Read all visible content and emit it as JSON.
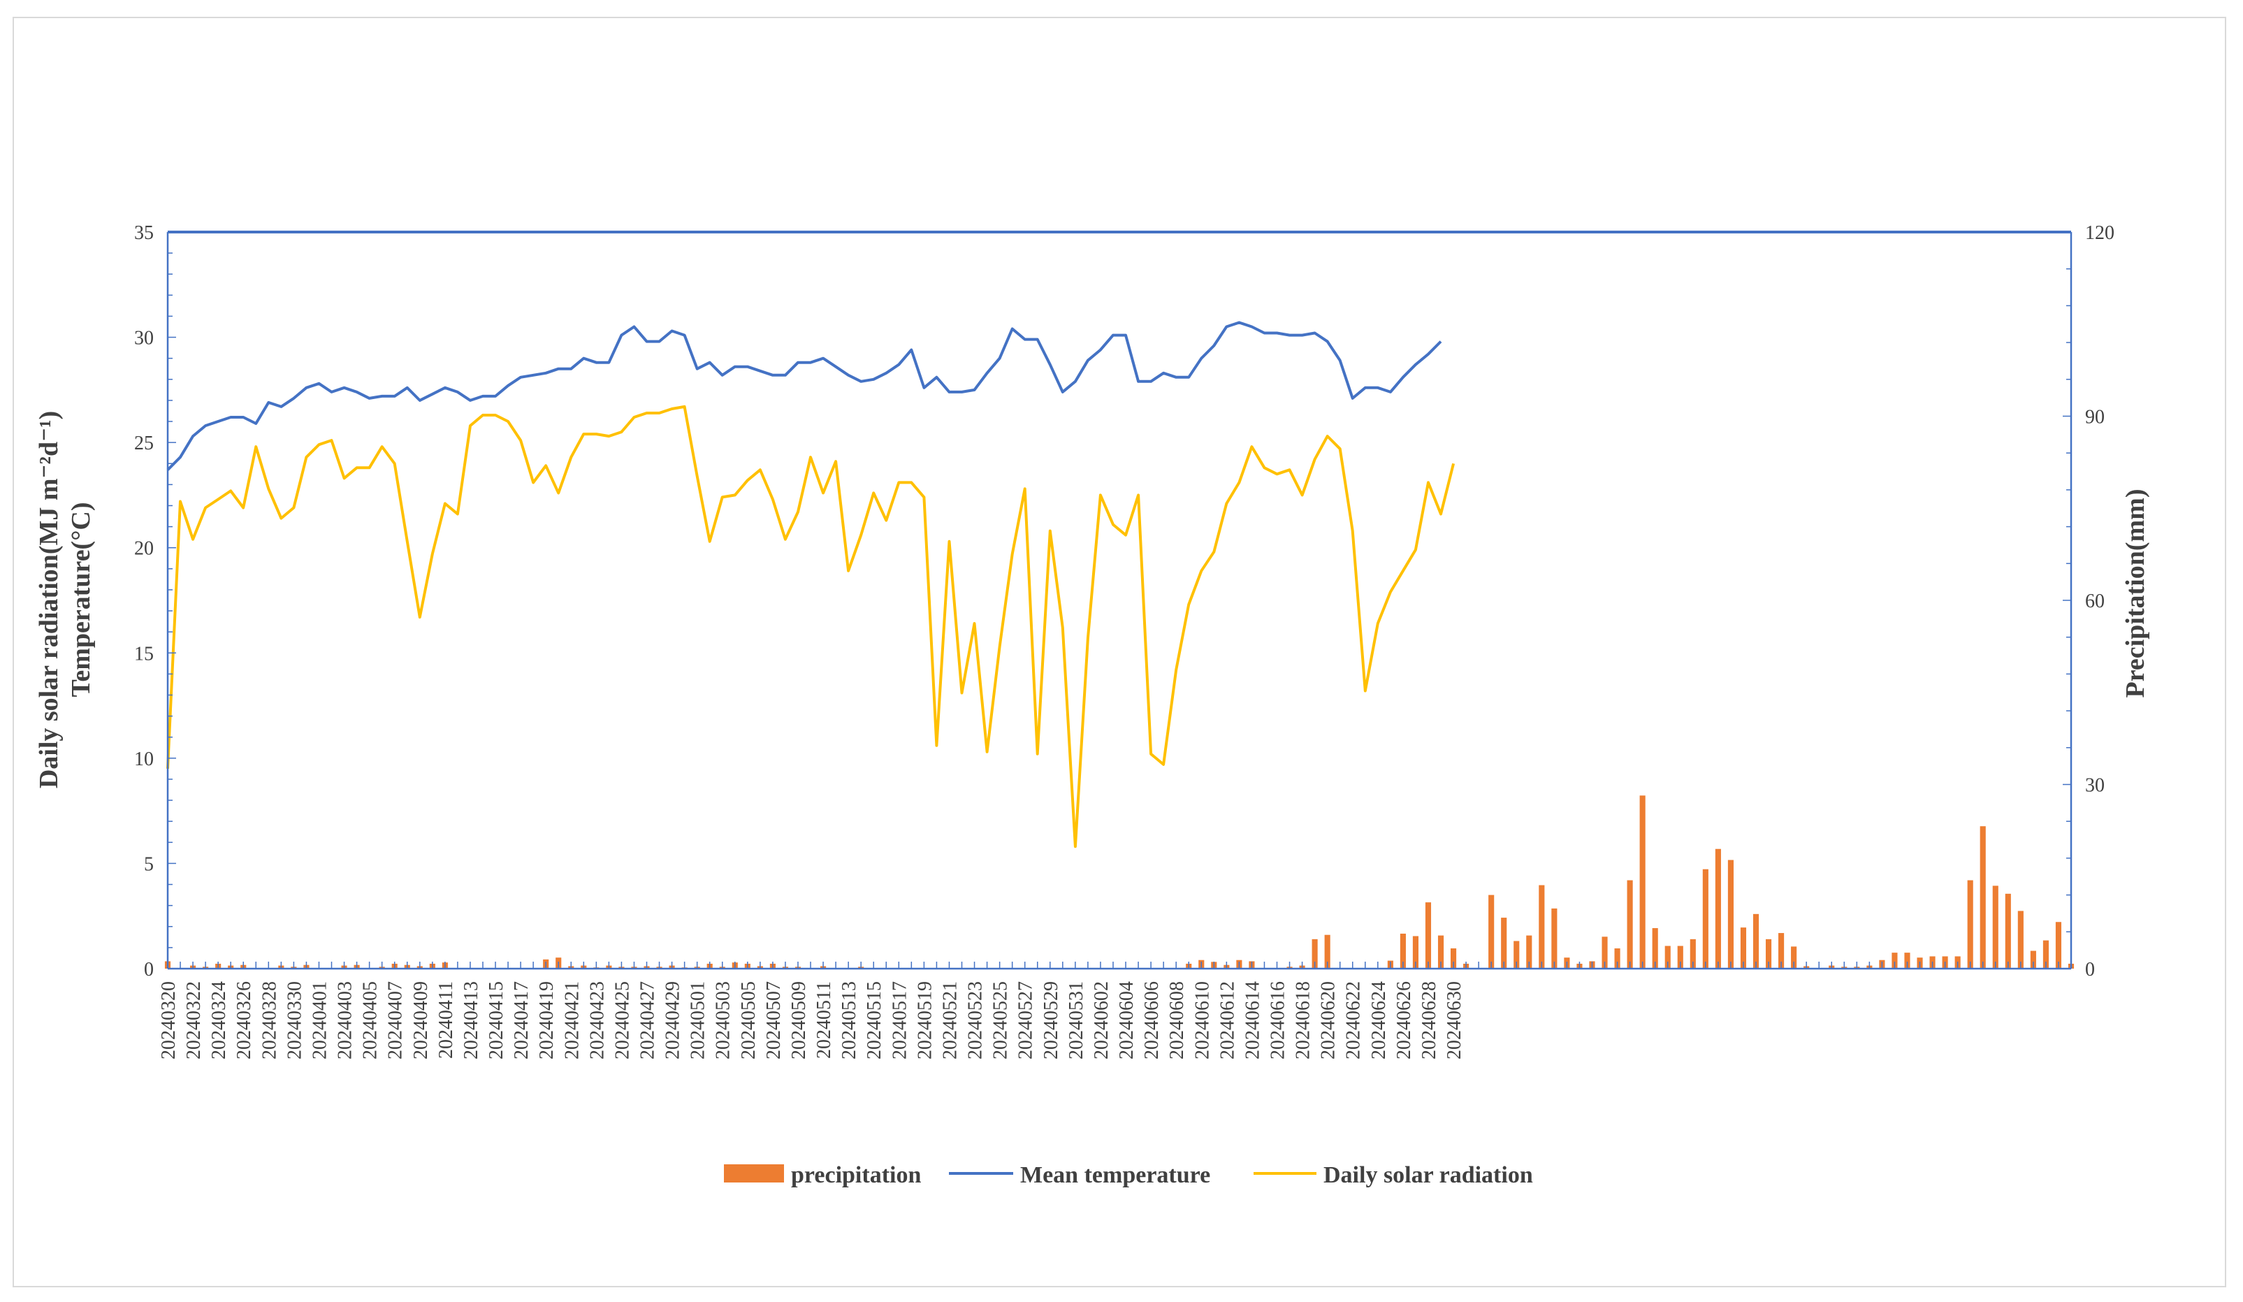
{
  "chart_data": {
    "type": "bar+line",
    "title": "",
    "y_left_label_line1": "Daily solar radiation(MJ m⁻²d⁻¹)",
    "y_left_label_line2": "Temperature(°C)",
    "y_right_label": "Precipitation(mm)",
    "y_left_lim": [
      0,
      35
    ],
    "y_left_ticks": [
      0,
      5,
      10,
      15,
      20,
      25,
      30,
      35
    ],
    "y_right_lim": [
      0,
      120
    ],
    "y_right_ticks": [
      0,
      30,
      60,
      90,
      120
    ],
    "x_tick_labels": [
      "20240320",
      "20240322",
      "20240324",
      "20240326",
      "20240328",
      "20240330",
      "20240401",
      "20240403",
      "20240405",
      "20240407",
      "20240409",
      "20240411",
      "20240413",
      "20240415",
      "20240417",
      "20240419",
      "20240421",
      "20240423",
      "20240425",
      "20240427",
      "20240429",
      "20240501",
      "20240503",
      "20240505",
      "20240507",
      "20240509",
      "20240511",
      "20240513",
      "20240515",
      "20240517",
      "20240519",
      "20240521",
      "20240523",
      "20240525",
      "20240527",
      "20240529",
      "20240531",
      "20240602",
      "20240604",
      "20240606",
      "20240608",
      "20240610",
      "20240612",
      "20240614",
      "20240616",
      "20240618",
      "20240620",
      "20240622",
      "20240624",
      "20240626",
      "20240628",
      "20240630"
    ],
    "series": [
      {
        "name": "precipitation",
        "type": "bar",
        "axis": "right",
        "color": "#ED7D31",
        "values": [
          1.2,
          0,
          0.5,
          0.3,
          0.8,
          0.5,
          0.6,
          0,
          0,
          0.5,
          0.3,
          0.6,
          0,
          0,
          0.5,
          0.6,
          0,
          0.3,
          0.8,
          0.6,
          0.4,
          0.8,
          1,
          0,
          0,
          0,
          0,
          0,
          0,
          0,
          1.5,
          1.8,
          0.4,
          0.5,
          0.2,
          0.5,
          0.3,
          0.3,
          0.4,
          0.3,
          0.5,
          0.2,
          0.3,
          0.8,
          0.3,
          1,
          0.8,
          0.4,
          0.8,
          0.3,
          0.3,
          0,
          0.4,
          0,
          0,
          0.3,
          0,
          0,
          0,
          0,
          0,
          0,
          0,
          0,
          0,
          0,
          0,
          0,
          0,
          0,
          0,
          0,
          0,
          0,
          0,
          0,
          0,
          0,
          0,
          0,
          0,
          0.8,
          1.4,
          1.1,
          0.6,
          1.4,
          1.2,
          0,
          0,
          0.3,
          0.5,
          4.8,
          5.5,
          0,
          0,
          0,
          0,
          1.3,
          5.7,
          5.3,
          10.8,
          5.4,
          3.3,
          0.8,
          0,
          12,
          8.3,
          4.5,
          5.4,
          13.6,
          9.8,
          1.8,
          0.8,
          1.2,
          5.2,
          3.3,
          14.4,
          28.2,
          6.6,
          3.7,
          3.7,
          4.8,
          16.2,
          19.5,
          17.7,
          6.7,
          8.9,
          4.8,
          5.8,
          3.6,
          0.4,
          0,
          0.5,
          0.3,
          0.3,
          0.5,
          1.4,
          2.6,
          2.6,
          1.8,
          2,
          2,
          2,
          14.4,
          23.2,
          13.5,
          12.2,
          9.4,
          2.9,
          4.6,
          7.6,
          0.8
        ]
      },
      {
        "name": "Mean temperature",
        "type": "line",
        "axis": "left",
        "color": "#4472C4",
        "values": [
          23.7,
          24.3,
          25.3,
          25.8,
          26,
          26.2,
          26.2,
          25.9,
          26.9,
          26.7,
          27.1,
          27.6,
          27.8,
          27.4,
          27.6,
          27.4,
          27.1,
          27.2,
          27.2,
          27.6,
          27,
          27.3,
          27.6,
          27.4,
          27,
          27.2,
          27.2,
          27.7,
          28.1,
          28.2,
          28.3,
          28.5,
          28.5,
          29,
          28.8,
          28.8,
          30.1,
          30.5,
          29.8,
          29.8,
          30.3,
          30.1,
          28.5,
          28.8,
          28.2,
          28.6,
          28.6,
          28.4,
          28.2,
          28.2,
          28.8,
          28.8,
          29,
          28.6,
          28.2,
          27.9,
          28,
          28.3,
          28.7,
          29.4,
          27.6,
          28.1,
          27.4,
          27.4,
          27.5,
          28.3,
          29,
          30.4,
          29.9,
          29.9,
          28.7,
          27.4,
          27.9,
          28.9,
          29.4,
          30.1,
          30.1,
          27.9,
          27.9,
          28.3,
          28.1,
          28.1,
          29,
          29.6,
          30.5,
          30.7,
          30.5,
          30.2,
          30.2,
          30.1,
          30.1,
          30.2,
          29.8,
          28.9,
          27.1,
          27.6,
          27.6,
          27.4,
          28.1,
          28.7,
          29.2,
          29.8
        ]
      },
      {
        "name": "Daily solar radiation",
        "type": "line",
        "axis": "left",
        "color": "#FFC000",
        "values": [
          9.5,
          22.2,
          20.4,
          21.9,
          22.3,
          22.7,
          21.9,
          24.8,
          22.8,
          21.4,
          21.9,
          24.3,
          24.9,
          25.1,
          23.3,
          23.8,
          23.8,
          24.8,
          24,
          20.3,
          16.7,
          19.7,
          22.1,
          21.6,
          25.8,
          26.3,
          26.3,
          26,
          25.1,
          23.1,
          23.9,
          22.6,
          24.3,
          25.4,
          25.4,
          25.3,
          25.5,
          26.2,
          26.4,
          26.4,
          26.6,
          26.7,
          23.4,
          20.3,
          22.4,
          22.5,
          23.2,
          23.7,
          22.3,
          20.4,
          21.7,
          24.3,
          22.6,
          24.1,
          18.9,
          20.6,
          22.6,
          21.3,
          23.1,
          23.1,
          22.4,
          10.6,
          20.3,
          13.1,
          16.4,
          10.3,
          15.3,
          19.7,
          22.8,
          10.2,
          20.8,
          16.2,
          5.8,
          15.7,
          22.5,
          21.1,
          20.6,
          22.5,
          10.2,
          9.7,
          14.2,
          17.3,
          18.9,
          19.8,
          22.1,
          23.1,
          24.8,
          23.8,
          23.5,
          23.7,
          22.5,
          24.2,
          25.3,
          24.7,
          20.8,
          13.2,
          16.4,
          17.9,
          18.9,
          19.9,
          23.1,
          21.6,
          24
        ]
      }
    ],
    "legend_position": "bottom-center"
  },
  "legend": {
    "precipitation": "precipitation",
    "mean_temperature": "Mean temperature",
    "solar_radiation": "Daily solar radiation"
  }
}
